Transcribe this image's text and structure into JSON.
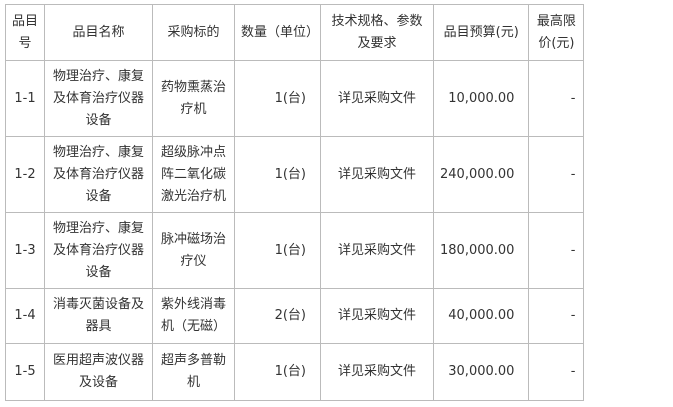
{
  "headers": [
    "品目号",
    "品目名称",
    "采购标的",
    "数量（单位）",
    "技术规格、参数及要求",
    "品目预算(元)",
    "最高限价(元)"
  ],
  "rows": [
    {
      "id": "1-1",
      "name": "物理治疗、康复及体育治疗仪器设备",
      "item": "药物熏蒸治疗机",
      "qty": "1(台)",
      "spec": "详见采购文件",
      "budget": "10,000.00",
      "max": "-"
    },
    {
      "id": "1-2",
      "name": "物理治疗、康复及体育治疗仪器设备",
      "item": "超级脉冲点阵二氧化碳激光治疗机",
      "qty": "1(台)",
      "spec": "详见采购文件",
      "budget": "240,000.00",
      "max": "-"
    },
    {
      "id": "1-3",
      "name": "物理治疗、康复及体育治疗仪器设备",
      "item": "脉冲磁场治疗仪",
      "qty": "1(台)",
      "spec": "详见采购文件",
      "budget": "180,000.00",
      "max": "-"
    },
    {
      "id": "1-4",
      "name": "消毒灭菌设备及器具",
      "item": "紫外线消毒机（无磁）",
      "qty": "2(台)",
      "spec": "详见采购文件",
      "budget": "40,000.00",
      "max": "-"
    },
    {
      "id": "1-5",
      "name": "医用超声波仪器及设备",
      "item": "超声多普勒机",
      "qty": "1(台)",
      "spec": "详见采购文件",
      "budget": "30,000.00",
      "max": "-"
    }
  ]
}
